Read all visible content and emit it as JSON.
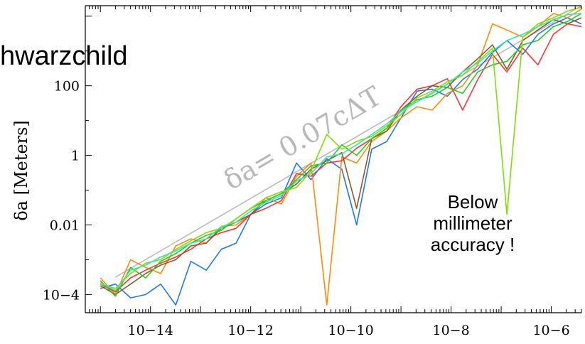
{
  "slide": {
    "title_fragment": "hwarzchild",
    "annotation_lines": [
      "Below",
      "millimeter",
      "accuracy !"
    ]
  },
  "chart_data": {
    "type": "line",
    "title": "",
    "xlabel": "",
    "ylabel": "δa [Meters]",
    "xscale": "log",
    "yscale": "log",
    "xlim": [
      5e-16,
      4e-06
    ],
    "ylim": [
      3e-05,
      20000
    ],
    "x_ticks": [
      "10−14",
      "10−12",
      "10−10",
      "10−8",
      "10−6"
    ],
    "y_ticks": [
      "100",
      "1",
      "0.01",
      "10−4"
    ],
    "reference_line": {
      "label": "δa= 0.07cΔT",
      "color": "#bbbbbb",
      "points": [
        [
          2e-15,
          0.000316
        ],
        [
          4e-06,
          20000
        ]
      ]
    },
    "x": [
      1e-15,
      2e-15,
      4e-15,
      8e-15,
      1.6e-14,
      3.2e-14,
      6.4e-14,
      1.3e-13,
      2.6e-13,
      5.1e-13,
      1e-12,
      2e-12,
      4.1e-12,
      8.2e-12,
      1.6e-11,
      3.3e-11,
      6.6e-11,
      1.3e-10,
      2.6e-10,
      5.2e-10,
      1e-09,
      2.1e-09,
      4.2e-09,
      8.4e-09,
      1.7e-08,
      3.4e-08,
      6.7e-08,
      1.3e-07,
      2.7e-07,
      5.4e-07,
      1.1e-06,
      2.1e-06,
      4e-06
    ],
    "series": [
      {
        "color": "#1f77ff",
        "values": [
          0.00015,
          0.0002,
          8e-05,
          0.0001,
          0.0002,
          5e-05,
          0.0009,
          0.0005,
          0.002,
          0.003,
          0.02,
          0.04,
          0.06,
          0.6,
          0.2,
          0.8,
          0.4,
          0.01,
          1.5,
          2.5,
          12,
          70,
          80,
          50,
          150,
          300,
          900,
          2000,
          800,
          3000,
          6000,
          9000,
          6000
        ]
      },
      {
        "color": "#ff8c00",
        "values": [
          0.0003,
          0.0001,
          0.001,
          0.0006,
          0.0004,
          0.0025,
          0.004,
          0.003,
          0.009,
          0.01,
          0.02,
          0.06,
          0.04,
          0.25,
          0.6,
          5e-05,
          0.9,
          0.6,
          2.5,
          5,
          12,
          25,
          20,
          60,
          100,
          400,
          6000,
          4000,
          2500,
          5000,
          12000,
          9000,
          16000
        ]
      },
      {
        "color": "#ff3333",
        "values": [
          0.0002,
          0.00012,
          0.0003,
          0.0005,
          0.0008,
          0.0012,
          0.002,
          0.004,
          0.006,
          0.008,
          0.02,
          0.03,
          0.05,
          0.3,
          0.25,
          0.6,
          0.7,
          1.6,
          3,
          6,
          25,
          80,
          100,
          160,
          20,
          150,
          800,
          250,
          1200,
          400,
          3000,
          6000,
          5000
        ]
      },
      {
        "color": "#8b5a2b",
        "values": [
          0.00018,
          0.0001,
          0.0002,
          0.0004,
          0.0007,
          0.001,
          0.0025,
          0.003,
          0.008,
          0.012,
          0.02,
          0.05,
          0.08,
          0.15,
          0.4,
          0.7,
          1.2,
          0.03,
          3,
          5,
          20,
          50,
          100,
          90,
          250,
          600,
          1500,
          300,
          2000,
          4000,
          8000,
          6000,
          9000
        ]
      },
      {
        "color": "#22cc22",
        "values": [
          0.00025,
          9e-05,
          0.0006,
          0.0003,
          0.0009,
          0.0015,
          0.003,
          0.005,
          0.007,
          0.015,
          0.03,
          0.05,
          0.08,
          0.2,
          0.5,
          0.6,
          2,
          1,
          3,
          6,
          20,
          40,
          50,
          90,
          60,
          250,
          400,
          500,
          1500,
          2000,
          5000,
          7000,
          12000
        ]
      },
      {
        "color": "#7fe000",
        "values": [
          0.0002,
          0.00015,
          0.0004,
          0.0008,
          0.001,
          0.002,
          0.0035,
          0.006,
          0.008,
          0.015,
          0.03,
          0.06,
          0.09,
          0.12,
          0.35,
          4,
          1.5,
          2.5,
          3.5,
          7,
          15,
          45,
          70,
          130,
          200,
          500,
          1200,
          0.02,
          2500,
          6000,
          9000,
          14000,
          18000
        ]
      },
      {
        "color": "#33e8b0",
        "values": [
          0.00022,
          0.00013,
          0.0005,
          0.0007,
          0.0012,
          0.0018,
          0.003,
          0.004,
          0.009,
          0.012,
          0.025,
          0.045,
          0.07,
          0.18,
          0.3,
          0.9,
          1.1,
          2,
          4,
          8,
          18,
          35,
          60,
          110,
          250,
          450,
          1000,
          2000,
          3000,
          5000,
          8000,
          11000,
          12000
        ]
      }
    ]
  }
}
